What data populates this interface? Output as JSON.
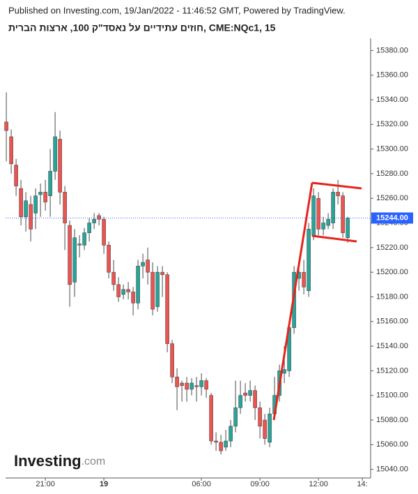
{
  "chart_data": {
    "type": "candlestick",
    "source": "Published on Investing.com, 19/Jan/2022 - 11:46:52 GMT, Powered by TradingView.",
    "title": "חוזים עתידיים על נאסד\"ק 100, ארצות הברית, CME:NQc1, 15",
    "logo": {
      "name": "Investing",
      "suffix": ".com"
    },
    "colors": {
      "up": "#26a69a",
      "down": "#ef5350",
      "wick": "#4a4a4a",
      "last": "#2962ff"
    },
    "grid": false,
    "ylim": [
      15033,
      15404
    ],
    "yticks": [
      {
        "value": 15040,
        "label": "15040.00"
      },
      {
        "value": 15060,
        "label": "15060.00"
      },
      {
        "value": 15080,
        "label": "15080.00"
      },
      {
        "value": 15100,
        "label": "15100.00"
      },
      {
        "value": 15120,
        "label": "15120.00"
      },
      {
        "value": 15140,
        "label": "15140.00"
      },
      {
        "value": 15160,
        "label": "15160.00"
      },
      {
        "value": 15180,
        "label": "15180.00"
      },
      {
        "value": 15200,
        "label": "15200.00"
      },
      {
        "value": 15220,
        "label": "15220.00"
      },
      {
        "value": 15240,
        "label": "15240.00"
      },
      {
        "value": 15260,
        "label": "15260.00"
      },
      {
        "value": 15280,
        "label": "15280.00"
      },
      {
        "value": 15300,
        "label": "15300.00"
      },
      {
        "value": 15320,
        "label": "15320.00"
      },
      {
        "value": 15340,
        "label": "15340.00"
      },
      {
        "value": 15360,
        "label": "15360.00"
      },
      {
        "value": 15380,
        "label": "15380.00"
      }
    ],
    "xlim": [
      -1.3,
      74.7
    ],
    "xticks": [
      {
        "value": 8,
        "label": "21:00"
      },
      {
        "value": 20,
        "label": "19"
      },
      {
        "value": 40,
        "label": "06:00"
      },
      {
        "value": 52,
        "label": "09:00"
      },
      {
        "value": 64,
        "label": "12:00"
      },
      {
        "value": 73,
        "label": "14:"
      }
    ],
    "last_price": {
      "value": 15244,
      "label": "15244.00"
    },
    "open": [
      15322,
      15310,
      15287,
      15268,
      15245,
      15255,
      15248,
      15263,
      15265,
      15262,
      15282,
      15308,
      15265,
      15238,
      15192,
      15222,
      15222,
      15232,
      15240,
      15246,
      15243,
      15222,
      15200,
      15190,
      15182,
      15186,
      15184,
      15175,
      15205,
      15210,
      15200,
      15172,
      15200,
      15198,
      15142,
      15115,
      15110,
      15110,
      15105,
      15108,
      15107,
      15112,
      15100,
      15063,
      15062,
      15058,
      15063,
      15075,
      15090,
      15102,
      15100,
      15104,
      15090,
      15080,
      15062,
      15085,
      15100,
      15118,
      15120,
      15155,
      15195,
      15200,
      15185,
      15230,
      15260,
      15235,
      15238,
      15240,
      15265,
      15262,
      15228
    ],
    "high": [
      15346,
      15316,
      15292,
      15275,
      15265,
      15262,
      15268,
      15272,
      15275,
      15300,
      15330,
      15315,
      15270,
      15242,
      15235,
      15230,
      15236,
      15244,
      15248,
      15248,
      15245,
      15225,
      15210,
      15196,
      15190,
      15192,
      15188,
      15210,
      15215,
      15220,
      15208,
      15205,
      15205,
      15200,
      15145,
      15122,
      15112,
      15115,
      15114,
      15115,
      15118,
      15114,
      15102,
      15070,
      15068,
      15072,
      15080,
      15112,
      15112,
      15110,
      15112,
      15108,
      15095,
      15085,
      15090,
      15115,
      15125,
      15140,
      15160,
      15205,
      15205,
      15210,
      15240,
      15268,
      15265,
      15245,
      15248,
      15268,
      15275,
      15265,
      15245
    ],
    "low": [
      15290,
      15280,
      15262,
      15238,
      15233,
      15225,
      15235,
      15245,
      15250,
      15245,
      15275,
      15255,
      15218,
      15172,
      15180,
      15212,
      15218,
      15225,
      15235,
      15238,
      15215,
      15195,
      15185,
      15176,
      15178,
      15178,
      15165,
      15170,
      15195,
      15190,
      15165,
      15168,
      15180,
      15135,
      15110,
      15088,
      15095,
      15095,
      15100,
      15095,
      15100,
      15098,
      15060,
      15055,
      15052,
      15055,
      15058,
      15070,
      15085,
      15095,
      15095,
      15080,
      15065,
      15060,
      15058,
      15080,
      15095,
      15110,
      15115,
      15150,
      15185,
      15182,
      15180,
      15226,
      15230,
      15230,
      15235,
      15235,
      15255,
      15228,
      15224
    ],
    "close": [
      15315,
      15288,
      15270,
      15245,
      15258,
      15235,
      15262,
      15265,
      15257,
      15282,
      15310,
      15265,
      15240,
      15190,
      15228,
      15223,
      15232,
      15240,
      15243,
      15243,
      15222,
      15200,
      15190,
      15180,
      15186,
      15184,
      15175,
      15205,
      15208,
      15200,
      15170,
      15200,
      15198,
      15142,
      15115,
      15107,
      15108,
      15105,
      15110,
      15107,
      15112,
      15105,
      15063,
      15062,
      15055,
      15063,
      15075,
      15090,
      15100,
      15100,
      15104,
      15090,
      15075,
      15065,
      15085,
      15100,
      15120,
      15121,
      15155,
      15200,
      15200,
      15188,
      15235,
      15262,
      15235,
      15240,
      15243,
      15265,
      15262,
      15232,
      15244
    ]
  }
}
